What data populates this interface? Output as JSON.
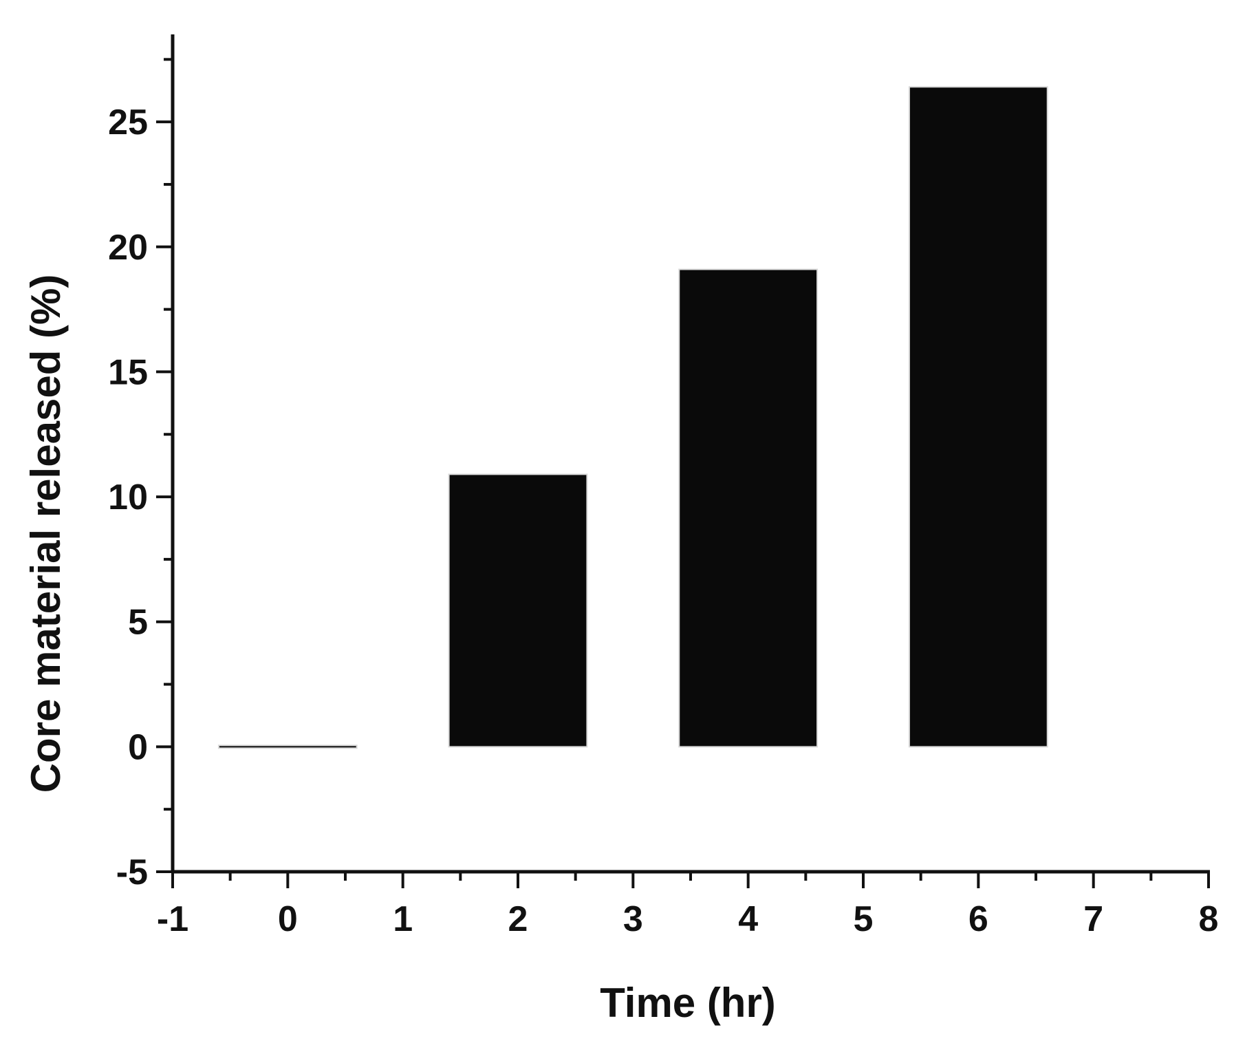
{
  "chart_data": {
    "type": "bar",
    "xlabel": "Time (hr)",
    "ylabel": "Core material released (%)",
    "x": [
      0,
      2,
      4,
      6
    ],
    "values": [
      0,
      10.9,
      19.1,
      26.4
    ],
    "bar_width": 1.2,
    "xlim": [
      -1,
      8
    ],
    "ylim": [
      -5,
      28.5
    ],
    "x_ticks": [
      "-1",
      "0",
      "1",
      "2",
      "3",
      "4",
      "5",
      "6",
      "7",
      "8"
    ],
    "y_ticks": [
      "-5",
      "0",
      "5",
      "10",
      "15",
      "20",
      "25"
    ],
    "grid": false,
    "bar_color": "#0a0a0a",
    "axis_color": "#111111"
  }
}
